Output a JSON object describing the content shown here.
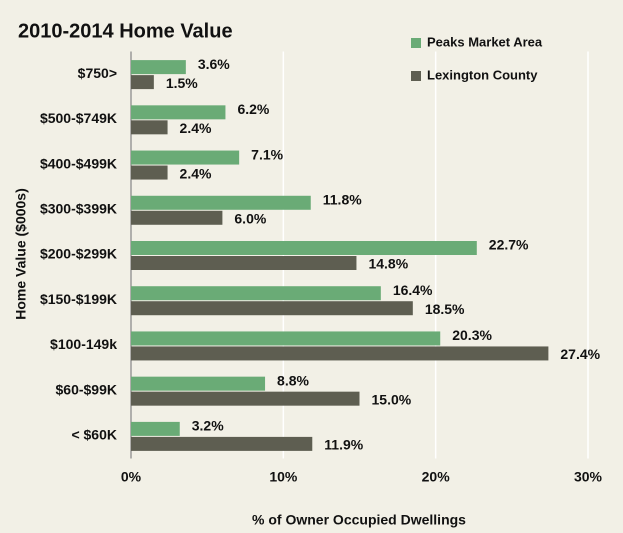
{
  "chart_data": {
    "type": "barh",
    "title": "2010-2014  Home Value",
    "xlabel": "% of Owner Occupied Dwellings",
    "ylabel": "Home Value ($000s)",
    "categories": [
      "$750>",
      "$500-$749K",
      "$400-$499K",
      "$300-$399K",
      "$200-$299K",
      "$150-$199K",
      "$100-149k",
      "$60-$99K",
      "< $60K"
    ],
    "series": [
      {
        "name": "Peaks Market Area",
        "color": "#6aab76",
        "values": [
          3.6,
          6.2,
          7.1,
          11.8,
          22.7,
          16.4,
          20.3,
          8.8,
          3.2
        ],
        "value_labels": [
          "3.6%",
          "6.2%",
          "7.1%",
          "11.8%",
          "22.7%",
          "16.4%",
          "20.3%",
          "8.8%",
          "3.2%"
        ]
      },
      {
        "name": "Lexington County",
        "color": "#5e5e51",
        "values": [
          1.5,
          2.4,
          2.4,
          6.0,
          14.8,
          18.5,
          27.4,
          15.0,
          11.9
        ],
        "value_labels": [
          "1.5%",
          "2.4%",
          "2.4%",
          "6.0%",
          "14.8%",
          "18.5%",
          "27.4%",
          "15.0%",
          "11.9%"
        ]
      }
    ],
    "xlim": [
      0,
      30
    ],
    "xticks": [
      {
        "value": 0,
        "label": "0%"
      },
      {
        "value": 10,
        "label": "10%"
      },
      {
        "value": 20,
        "label": "20%"
      },
      {
        "value": 30,
        "label": "30%"
      }
    ],
    "grid": true,
    "legend": "upper right"
  }
}
